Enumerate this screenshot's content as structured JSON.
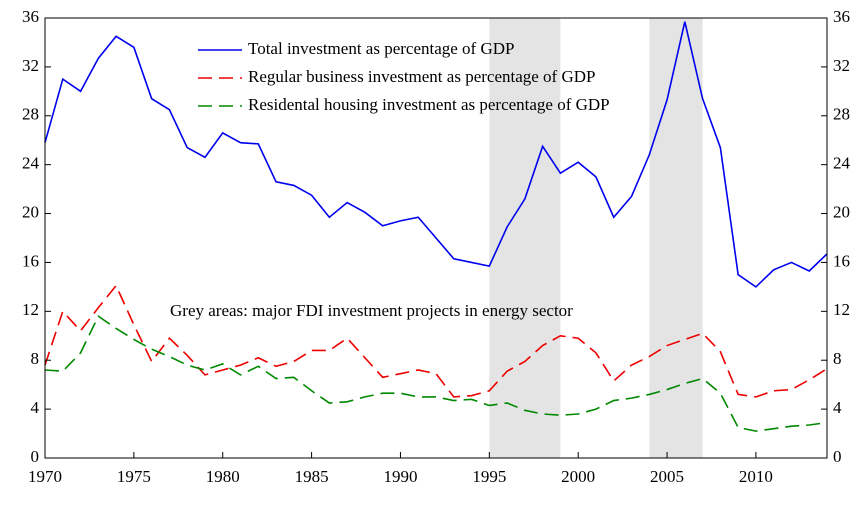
{
  "chart_data": {
    "type": "line",
    "x": [
      1970,
      1971,
      1972,
      1973,
      1974,
      1975,
      1976,
      1977,
      1978,
      1979,
      1980,
      1981,
      1982,
      1983,
      1984,
      1985,
      1986,
      1987,
      1988,
      1989,
      1990,
      1991,
      1992,
      1993,
      1994,
      1995,
      1996,
      1997,
      1998,
      1999,
      2000,
      2001,
      2002,
      2003,
      2004,
      2005,
      2006,
      2007,
      2008,
      2009,
      2010,
      2011,
      2012,
      2013,
      2014
    ],
    "series": [
      {
        "name": "Total investment as percentage of GDP",
        "color": "#0000ee",
        "dash": "solid",
        "values": [
          25.8,
          31.0,
          30.0,
          32.7,
          34.5,
          33.6,
          29.4,
          28.5,
          25.4,
          24.6,
          26.6,
          25.8,
          25.7,
          22.6,
          22.3,
          21.5,
          19.7,
          20.9,
          20.1,
          19.0,
          19.4,
          19.7,
          18.0,
          16.3,
          16.0,
          15.7,
          18.9,
          21.2,
          25.5,
          23.3,
          24.2,
          23.0,
          19.7,
          21.4,
          24.8,
          29.3,
          35.7,
          29.4,
          25.4,
          15.0,
          14.0,
          15.4,
          16.0,
          15.3,
          16.7
        ]
      },
      {
        "name": "Regular business investment as percentage of GDP",
        "color": "#ee0000",
        "dash": "dashed",
        "values": [
          7.6,
          12.0,
          10.4,
          12.3,
          14.1,
          10.9,
          7.9,
          9.8,
          8.4,
          6.8,
          7.2,
          7.6,
          8.2,
          7.5,
          7.9,
          8.8,
          8.8,
          9.8,
          8.2,
          6.6,
          6.9,
          7.2,
          6.9,
          5.0,
          5.1,
          5.5,
          7.1,
          7.9,
          9.2,
          10.0,
          9.8,
          8.6,
          6.3,
          7.6,
          8.3,
          9.2,
          9.7,
          10.2,
          8.7,
          5.2,
          5.0,
          5.5,
          5.6,
          6.4,
          7.3
        ]
      },
      {
        "name": "Residental housing investment as percentage of GDP",
        "color": "#008800",
        "dash": "dashed",
        "values": [
          7.2,
          7.1,
          8.6,
          11.6,
          10.6,
          9.7,
          8.9,
          8.3,
          7.6,
          7.2,
          7.7,
          6.8,
          7.5,
          6.5,
          6.6,
          5.5,
          4.5,
          4.6,
          5.0,
          5.3,
          5.3,
          5.0,
          5.0,
          4.7,
          4.8,
          4.3,
          4.5,
          3.9,
          3.6,
          3.5,
          3.6,
          4.0,
          4.7,
          4.9,
          5.2,
          5.6,
          6.1,
          6.5,
          5.3,
          2.5,
          2.2,
          2.4,
          2.6,
          2.7,
          2.9
        ]
      }
    ],
    "shaded": [
      [
        1995,
        1999
      ],
      [
        2004,
        2007
      ]
    ],
    "shade_color": "#e4e4e4",
    "annotation": "Grey areas: major FDI investment projects in energy sector",
    "xlim": [
      1970,
      2014
    ],
    "xticks": [
      1970,
      1975,
      1980,
      1985,
      1990,
      1995,
      2000,
      2005,
      2010
    ],
    "ylim": [
      0,
      36
    ],
    "yticks": [
      0,
      4,
      8,
      12,
      16,
      20,
      24,
      28,
      32,
      36
    ],
    "y2lim": [
      0,
      36
    ],
    "y2ticks": [
      0,
      4,
      8,
      12,
      16,
      20,
      24,
      28,
      32,
      36
    ],
    "grid": false
  }
}
